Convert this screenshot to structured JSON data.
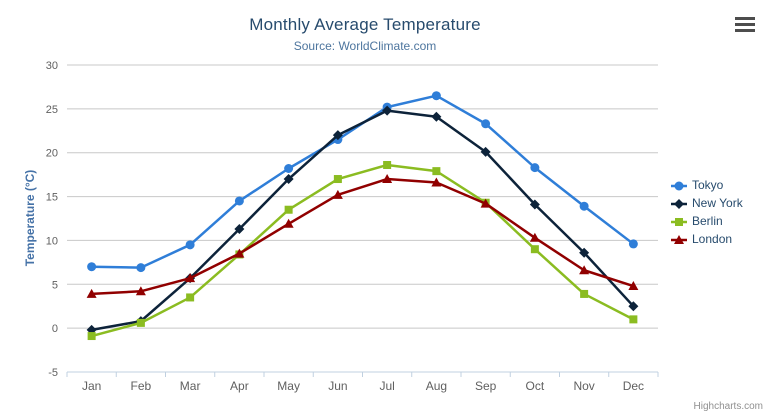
{
  "chart_data": {
    "type": "line",
    "title": "Monthly Average Temperature",
    "subtitle": "Source: WorldClimate.com",
    "xlabel": "",
    "ylabel": "Temperature (°C)",
    "ylim": [
      -5,
      30
    ],
    "y_tick_interval": 5,
    "grid": true,
    "legend_position": "right",
    "categories": [
      "Jan",
      "Feb",
      "Mar",
      "Apr",
      "May",
      "Jun",
      "Jul",
      "Aug",
      "Sep",
      "Oct",
      "Nov",
      "Dec"
    ],
    "series": [
      {
        "name": "Tokyo",
        "color": "#2f7ed8",
        "marker": "circle",
        "values": [
          7.0,
          6.9,
          9.5,
          14.5,
          18.2,
          21.5,
          25.2,
          26.5,
          23.3,
          18.3,
          13.9,
          9.6
        ]
      },
      {
        "name": "New York",
        "color": "#0d233a",
        "marker": "diamond",
        "values": [
          -0.2,
          0.8,
          5.7,
          11.3,
          17.0,
          22.0,
          24.8,
          24.1,
          20.1,
          14.1,
          8.6,
          2.5
        ]
      },
      {
        "name": "Berlin",
        "color": "#8bbc21",
        "marker": "square",
        "values": [
          -0.9,
          0.6,
          3.5,
          8.4,
          13.5,
          17.0,
          18.6,
          17.9,
          14.3,
          9.0,
          3.9,
          1.0
        ]
      },
      {
        "name": "London",
        "color": "#910000",
        "marker": "triangle",
        "values": [
          3.9,
          4.2,
          5.7,
          8.5,
          11.9,
          15.2,
          17.0,
          16.6,
          14.2,
          10.3,
          6.6,
          4.8
        ]
      }
    ],
    "credit": "Highcharts.com",
    "colors": {
      "title_text": "#274b6d",
      "subtitle_text": "#4d759e",
      "axis_title_text": "#4572a7",
      "tick_label_text": "#606060",
      "grid_line": "#c8c8c8",
      "x_axis_line": "#c0d0e0"
    },
    "export_icon": "hamburger-menu-icon"
  }
}
